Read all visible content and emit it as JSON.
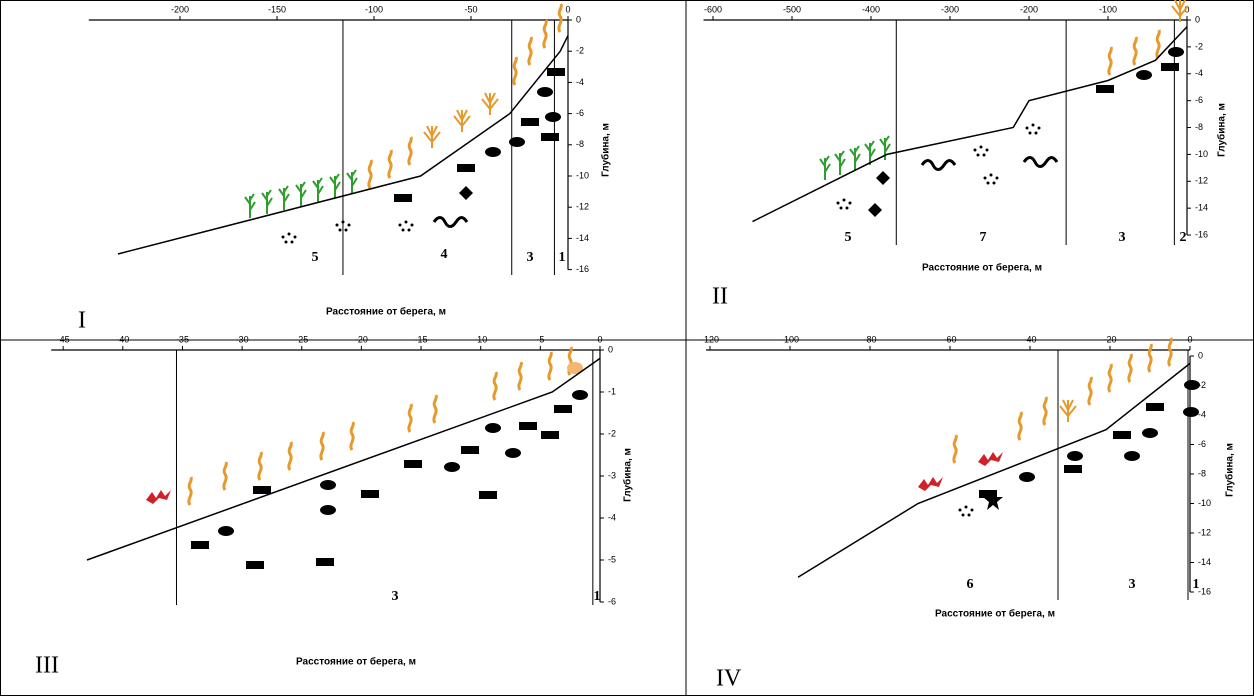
{
  "chart_data": [
    {
      "type": "line",
      "panel_label": "I",
      "x_label": "Расстояние от берега, м",
      "y_label": "Глубина, м",
      "x": [
        -232,
        -76,
        -30,
        -4,
        0
      ],
      "values": [
        -15,
        -10,
        -6,
        -2,
        -1
      ],
      "color": "#000000",
      "xlim": [
        -247,
        0
      ],
      "xticks": [
        -200,
        -150,
        -100,
        -50,
        0
      ],
      "ylim": [
        -16,
        0
      ],
      "yticks": [
        0,
        -2,
        -4,
        -6,
        -8,
        -10,
        -12,
        -14,
        -16
      ],
      "zone_boundaries": [
        -116,
        -29,
        -7
      ],
      "zone_labels": [
        "5",
        "4",
        "3",
        "1"
      ]
    },
    {
      "type": "line",
      "panel_label": "II",
      "x_label": "Расстояние от берега, м",
      "y_label": "Глубина, м",
      "x": [
        -550,
        -380,
        -220,
        -200,
        -100,
        -40,
        0
      ],
      "values": [
        -15,
        -10,
        -8,
        -6,
        -4.5,
        -3,
        -0.5
      ],
      "color": "#000000",
      "xlim": [
        -612,
        0
      ],
      "xticks": [
        -600,
        -500,
        -400,
        -300,
        -200,
        -100,
        0
      ],
      "ylim": [
        -16,
        0
      ],
      "yticks": [
        0,
        -2,
        -4,
        -6,
        -8,
        -10,
        -12,
        -14,
        -16
      ],
      "zone_boundaries": [
        -368,
        -153,
        -16
      ],
      "zone_labels": [
        "5",
        "7",
        "3",
        "2"
      ]
    },
    {
      "type": "line",
      "panel_label": "III",
      "x_label": "Расстояние от берега, м",
      "y_label": "Глубина, м",
      "x": [
        -43,
        -4,
        0
      ],
      "values": [
        -5,
        -1,
        -0.2
      ],
      "color": "#000000",
      "xlim": [
        -46,
        0
      ],
      "xticks": [
        -45,
        -40,
        -35,
        -30,
        -25,
        -20,
        -15,
        -10,
        -5,
        0
      ],
      "ylim": [
        -6,
        0
      ],
      "yticks": [
        0,
        -1,
        -2,
        -3,
        -4,
        -5,
        -6
      ],
      "zone_boundaries": [
        -35.5,
        -0.6
      ],
      "zone_labels": [
        "3",
        "1"
      ]
    },
    {
      "type": "line",
      "panel_label": "IV",
      "x_label": "Расстояние от берега, м",
      "y_label": "Глубина, м",
      "x": [
        -98,
        -68,
        -21,
        0
      ],
      "values": [
        -15,
        -10,
        -5,
        -0.5
      ],
      "color": "#000000",
      "xlim": [
        -121,
        0
      ],
      "xticks": [
        -120,
        -100,
        -80,
        -60,
        -40,
        -20,
        0
      ],
      "ylim": [
        -16,
        0
      ],
      "yticks": [
        0,
        -2,
        -4,
        -6,
        -8,
        -10,
        -12,
        -14,
        -16
      ],
      "zone_boundaries": [
        -33,
        -0.5
      ],
      "zone_labels": [
        "6",
        "3",
        "1"
      ]
    }
  ]
}
